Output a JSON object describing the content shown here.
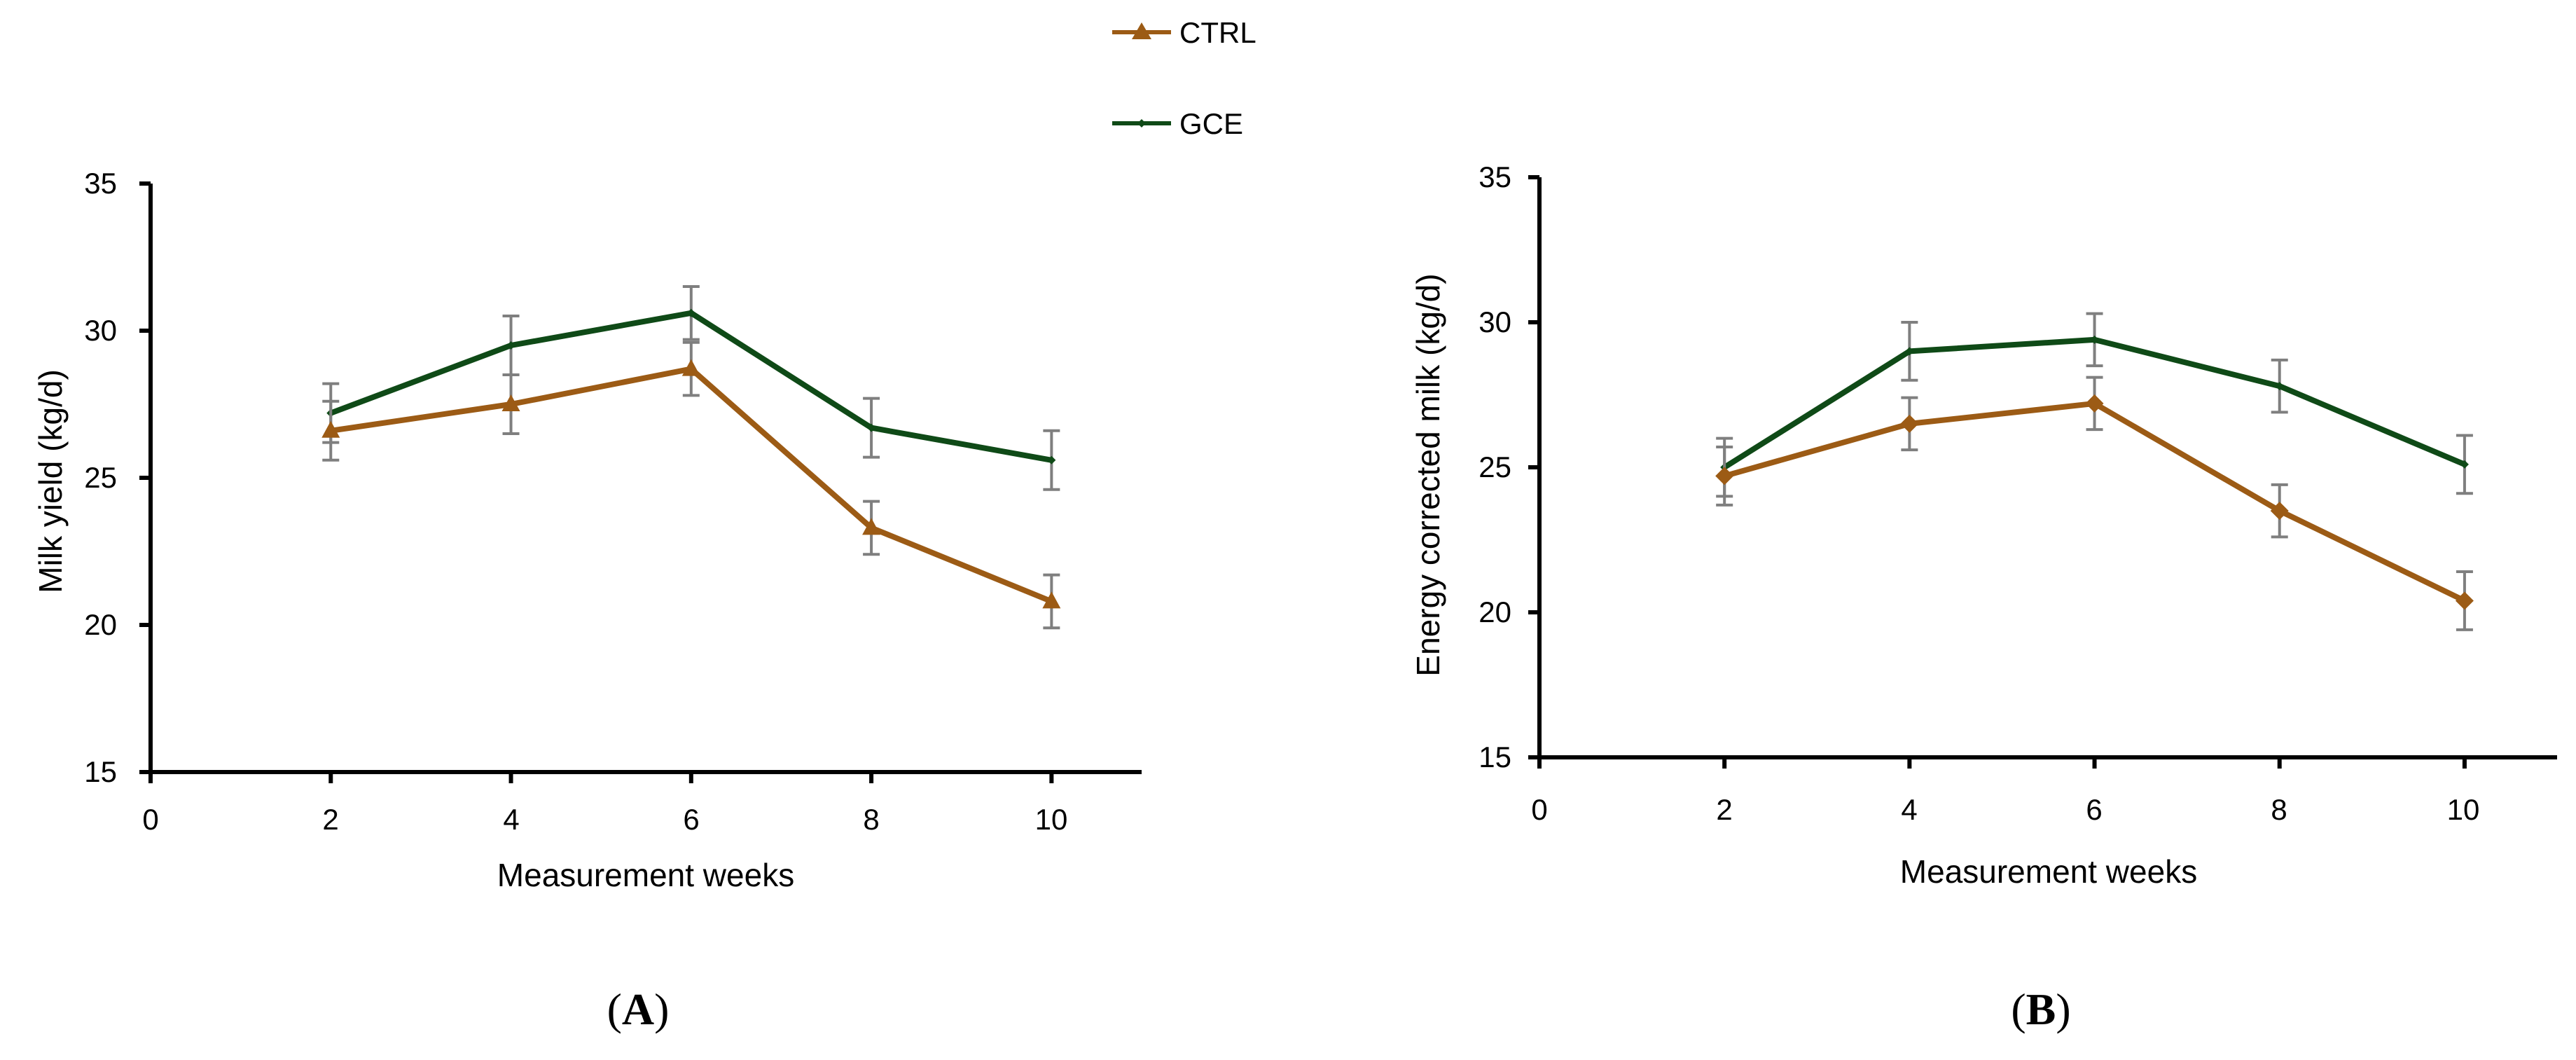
{
  "legend": [
    {
      "name": "CTRL",
      "color": "#9c5b15",
      "marker": "triangle"
    },
    {
      "name": "GCE",
      "color": "#0f4a17",
      "marker": "diamond"
    }
  ],
  "chart_data": [
    {
      "type": "line",
      "panel_label": "A",
      "xlabel": "Measurement weeks",
      "ylabel": "Milk yield (kg/d)",
      "xlim": [
        0,
        11
      ],
      "ylim": [
        15,
        35
      ],
      "xticks": [
        0,
        2,
        4,
        6,
        8,
        10
      ],
      "yticks": [
        15,
        20,
        25,
        30,
        35
      ],
      "x": [
        2,
        4,
        6,
        8,
        10
      ],
      "series": [
        {
          "name": "GCE",
          "color": "#0f4a17",
          "marker": "diamond",
          "values": [
            27.2,
            29.5,
            30.6,
            26.7,
            25.6
          ],
          "errors": [
            1.0,
            1.0,
            0.9,
            1.0,
            1.0
          ]
        },
        {
          "name": "CTRL",
          "color": "#9c5b15",
          "marker": "triangle",
          "values": [
            26.6,
            27.5,
            28.7,
            23.3,
            20.8
          ],
          "errors": [
            1.0,
            1.0,
            0.9,
            0.9,
            0.9
          ]
        }
      ]
    },
    {
      "type": "line",
      "panel_label": "B",
      "xlabel": "Measurement weeks",
      "ylabel": "Energy corrected milk (kg/d)",
      "xlim": [
        0,
        11
      ],
      "ylim": [
        15,
        35
      ],
      "xticks": [
        0,
        2,
        4,
        6,
        8,
        10
      ],
      "yticks": [
        15,
        20,
        25,
        30,
        35
      ],
      "x": [
        2,
        4,
        6,
        8,
        10
      ],
      "series": [
        {
          "name": "GCE",
          "color": "#0f4a17",
          "marker": "diamond",
          "values": [
            25.0,
            29.0,
            29.4,
            27.8,
            25.1
          ],
          "errors": [
            1.0,
            1.0,
            0.9,
            0.9,
            1.0
          ]
        },
        {
          "name": "CTRL",
          "color": "#9c5b15",
          "marker": "diamond",
          "values": [
            24.7,
            26.5,
            27.2,
            23.5,
            20.4
          ],
          "errors": [
            1.0,
            0.9,
            0.9,
            0.9,
            1.0
          ]
        }
      ]
    }
  ]
}
